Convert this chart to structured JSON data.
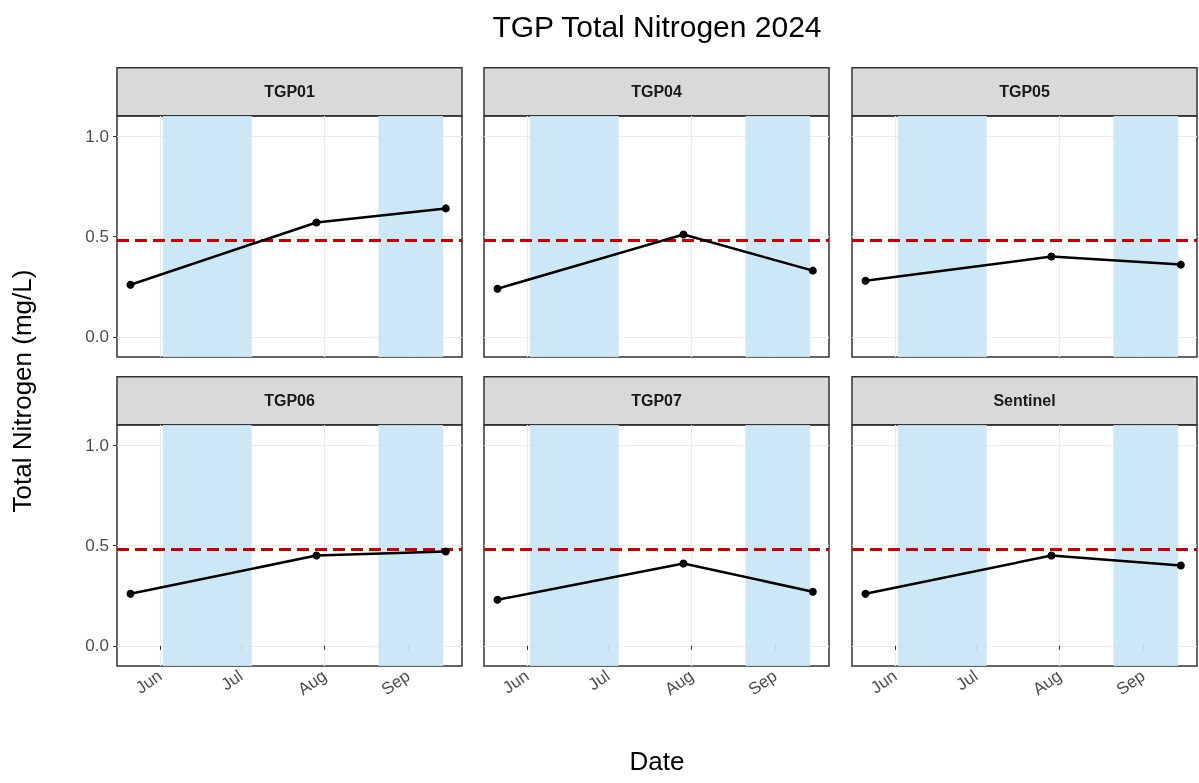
{
  "chart_data": [
    {
      "type": "line",
      "title": "TGP01",
      "annotations": [
        "TGP Total Nitrogen 2024"
      ],
      "ylabel": "Total Nitrogen (mg/L)",
      "x": [
        "2024-05-21",
        "2024-07-29",
        "2024-09-15"
      ],
      "values": [
        0.26,
        0.57,
        0.64
      ],
      "color": "#000000",
      "xlim": [
        "2024-05-16",
        "2024-09-21"
      ],
      "xticks": [
        {
          "value": "2024-06-01",
          "label": null
        },
        {
          "value": "2024-07-01",
          "label": null
        },
        {
          "value": "2024-08-01",
          "label": null
        },
        {
          "value": "2024-09-01",
          "label": null
        }
      ],
      "ylim": [
        -0.1,
        1.1
      ],
      "yticks": [
        {
          "value": 0,
          "label": "0.0"
        },
        {
          "value": 0.5,
          "label": "0.5"
        },
        {
          "value": 1,
          "label": "1.0"
        }
      ],
      "marker": "circle",
      "line_style": "solid",
      "grid": true,
      "tick_labels": "y",
      "ref_lines": [
        {
          "axis": "y",
          "value": 0.48,
          "label": null,
          "color": "#cc0000",
          "line_style": "dashed"
        }
      ],
      "bands": [
        {
          "axis": "x",
          "from": "2024-06-02",
          "to": "2024-07-05",
          "label": null,
          "color": "#c6e5f5"
        },
        {
          "axis": "x",
          "from": "2024-08-21",
          "to": "2024-09-14",
          "label": null,
          "color": "#c6e5f5"
        }
      ]
    },
    {
      "type": "line",
      "title": "TGP04",
      "x": [
        "2024-05-21",
        "2024-07-29",
        "2024-09-15"
      ],
      "values": [
        0.24,
        0.51,
        0.33
      ],
      "color": "#000000",
      "xlim": [
        "2024-05-16",
        "2024-09-21"
      ],
      "xticks": [
        {
          "value": "2024-06-01",
          "label": null
        },
        {
          "value": "2024-07-01",
          "label": null
        },
        {
          "value": "2024-08-01",
          "label": null
        },
        {
          "value": "2024-09-01",
          "label": null
        }
      ],
      "ylim": [
        -0.1,
        1.1
      ],
      "yticks": [
        {
          "value": 0,
          "label": null
        },
        {
          "value": 0.5,
          "label": null
        },
        {
          "value": 1,
          "label": null
        }
      ],
      "marker": "circle",
      "line_style": "solid",
      "grid": true,
      "tick_labels": false,
      "ref_lines": [
        {
          "axis": "y",
          "value": 0.48,
          "label": null,
          "color": "#cc0000",
          "line_style": "dashed"
        }
      ],
      "bands": [
        {
          "axis": "x",
          "from": "2024-06-02",
          "to": "2024-07-05",
          "label": null,
          "color": "#c6e5f5"
        },
        {
          "axis": "x",
          "from": "2024-08-21",
          "to": "2024-09-14",
          "label": null,
          "color": "#c6e5f5"
        }
      ]
    },
    {
      "type": "line",
      "title": "TGP05",
      "x": [
        "2024-05-21",
        "2024-07-29",
        "2024-09-15"
      ],
      "values": [
        0.28,
        0.4,
        0.36
      ],
      "color": "#000000",
      "xlim": [
        "2024-05-16",
        "2024-09-21"
      ],
      "xticks": [
        {
          "value": "2024-06-01",
          "label": null
        },
        {
          "value": "2024-07-01",
          "label": null
        },
        {
          "value": "2024-08-01",
          "label": null
        },
        {
          "value": "2024-09-01",
          "label": null
        }
      ],
      "ylim": [
        -0.1,
        1.1
      ],
      "yticks": [
        {
          "value": 0,
          "label": null
        },
        {
          "value": 0.5,
          "label": null
        },
        {
          "value": 1,
          "label": null
        }
      ],
      "marker": "circle",
      "line_style": "solid",
      "grid": true,
      "tick_labels": false,
      "ref_lines": [
        {
          "axis": "y",
          "value": 0.48,
          "label": null,
          "color": "#cc0000",
          "line_style": "dashed"
        }
      ],
      "bands": [
        {
          "axis": "x",
          "from": "2024-06-02",
          "to": "2024-07-05",
          "label": null,
          "color": "#c6e5f5"
        },
        {
          "axis": "x",
          "from": "2024-08-21",
          "to": "2024-09-14",
          "label": null,
          "color": "#c6e5f5"
        }
      ]
    },
    {
      "type": "line",
      "title": "TGP06",
      "x": [
        "2024-05-21",
        "2024-07-29",
        "2024-09-15"
      ],
      "values": [
        0.26,
        0.45,
        0.47
      ],
      "color": "#000000",
      "xlim": [
        "2024-05-16",
        "2024-09-21"
      ],
      "xticks": [
        {
          "value": "2024-06-01",
          "label": "Jun"
        },
        {
          "value": "2024-07-01",
          "label": "Jul"
        },
        {
          "value": "2024-08-01",
          "label": "Aug"
        },
        {
          "value": "2024-09-01",
          "label": "Sep"
        }
      ],
      "ylim": [
        -0.1,
        1.1
      ],
      "yticks": [
        {
          "value": 0,
          "label": "0.0"
        },
        {
          "value": 0.5,
          "label": "0.5"
        },
        {
          "value": 1,
          "label": "1.0"
        }
      ],
      "marker": "circle",
      "line_style": "solid",
      "grid": true,
      "ref_lines": [
        {
          "axis": "y",
          "value": 0.48,
          "label": null,
          "color": "#cc0000",
          "line_style": "dashed"
        }
      ],
      "bands": [
        {
          "axis": "x",
          "from": "2024-06-02",
          "to": "2024-07-05",
          "label": null,
          "color": "#c6e5f5"
        },
        {
          "axis": "x",
          "from": "2024-08-21",
          "to": "2024-09-14",
          "label": null,
          "color": "#c6e5f5"
        }
      ]
    },
    {
      "type": "line",
      "title": "TGP07",
      "xlabel": "Date",
      "x": [
        "2024-05-21",
        "2024-07-29",
        "2024-09-15"
      ],
      "values": [
        0.23,
        0.41,
        0.27
      ],
      "color": "#000000",
      "xlim": [
        "2024-05-16",
        "2024-09-21"
      ],
      "xticks": [
        {
          "value": "2024-06-01",
          "label": "Jun"
        },
        {
          "value": "2024-07-01",
          "label": "Jul"
        },
        {
          "value": "2024-08-01",
          "label": "Aug"
        },
        {
          "value": "2024-09-01",
          "label": "Sep"
        }
      ],
      "ylim": [
        -0.1,
        1.1
      ],
      "yticks": [
        {
          "value": 0,
          "label": null
        },
        {
          "value": 0.5,
          "label": null
        },
        {
          "value": 1,
          "label": null
        }
      ],
      "marker": "circle",
      "line_style": "solid",
      "grid": true,
      "tick_labels": "x",
      "ref_lines": [
        {
          "axis": "y",
          "value": 0.48,
          "label": null,
          "color": "#cc0000",
          "line_style": "dashed"
        }
      ],
      "bands": [
        {
          "axis": "x",
          "from": "2024-06-02",
          "to": "2024-07-05",
          "label": null,
          "color": "#c6e5f5"
        },
        {
          "axis": "x",
          "from": "2024-08-21",
          "to": "2024-09-14",
          "label": null,
          "color": "#c6e5f5"
        }
      ]
    },
    {
      "type": "line",
      "title": "Sentinel",
      "x": [
        "2024-05-21",
        "2024-07-29",
        "2024-09-15"
      ],
      "values": [
        0.26,
        0.45,
        0.4
      ],
      "color": "#000000",
      "xlim": [
        "2024-05-16",
        "2024-09-21"
      ],
      "xticks": [
        {
          "value": "2024-06-01",
          "label": "Jun"
        },
        {
          "value": "2024-07-01",
          "label": "Jul"
        },
        {
          "value": "2024-08-01",
          "label": "Aug"
        },
        {
          "value": "2024-09-01",
          "label": "Sep"
        }
      ],
      "ylim": [
        -0.1,
        1.1
      ],
      "yticks": [
        {
          "value": 0,
          "label": null
        },
        {
          "value": 0.5,
          "label": null
        },
        {
          "value": 1,
          "label": null
        }
      ],
      "marker": "circle",
      "line_style": "solid",
      "grid": true,
      "tick_labels": "x",
      "ref_lines": [
        {
          "axis": "y",
          "value": 0.48,
          "label": null,
          "color": "#cc0000",
          "line_style": "dashed"
        }
      ],
      "bands": [
        {
          "axis": "x",
          "from": "2024-06-02",
          "to": "2024-07-05",
          "label": null,
          "color": "#c6e5f5"
        },
        {
          "axis": "x",
          "from": "2024-08-21",
          "to": "2024-09-14",
          "label": null,
          "color": "#c6e5f5"
        }
      ]
    }
  ]
}
